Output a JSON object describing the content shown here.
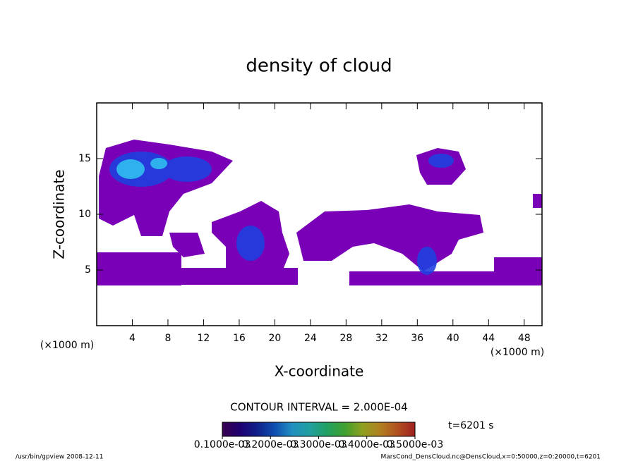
{
  "chart_data": {
    "type": "contour",
    "title": "density of cloud",
    "xlabel": "X-coordinate",
    "ylabel": "Z-coordinate",
    "x_unit": "(×1000 m)",
    "y_unit": "(×1000 m)",
    "xlim": [
      0,
      50
    ],
    "xticks": [
      4,
      8,
      12,
      16,
      20,
      24,
      28,
      32,
      36,
      40,
      44,
      48
    ],
    "ylim": [
      0,
      20
    ],
    "yticks": [
      5,
      10,
      15
    ],
    "contour_interval": "CONTOUR INTERVAL = 2.000E-04",
    "time_label": "t=6201 s",
    "colorbar": {
      "lim": [
        0.0001,
        0.0005
      ],
      "ticks": [
        {
          "value": 0.0001,
          "label": "0.1000e-03"
        },
        {
          "value": 0.0002,
          "label": "0.2000e-03"
        },
        {
          "value": 0.0003,
          "label": "0.3000e-03"
        },
        {
          "value": 0.0004,
          "label": "0.4000e-03"
        },
        {
          "value": 0.0005,
          "label": "0.5000e-03"
        }
      ],
      "colors": [
        "#3a0050",
        "#200070",
        "#10208a",
        "#1050b0",
        "#2090c0",
        "#20a0a0",
        "#20a060",
        "#40a030",
        "#90a020",
        "#b08020",
        "#b05020",
        "#a02020"
      ]
    },
    "footer_left": "/usr/bin/gpview  2008-12-11",
    "footer_right": "MarsCond_DensCloud.nc@DensCloud,x=0:50000,z=0:20000,t=6201"
  }
}
